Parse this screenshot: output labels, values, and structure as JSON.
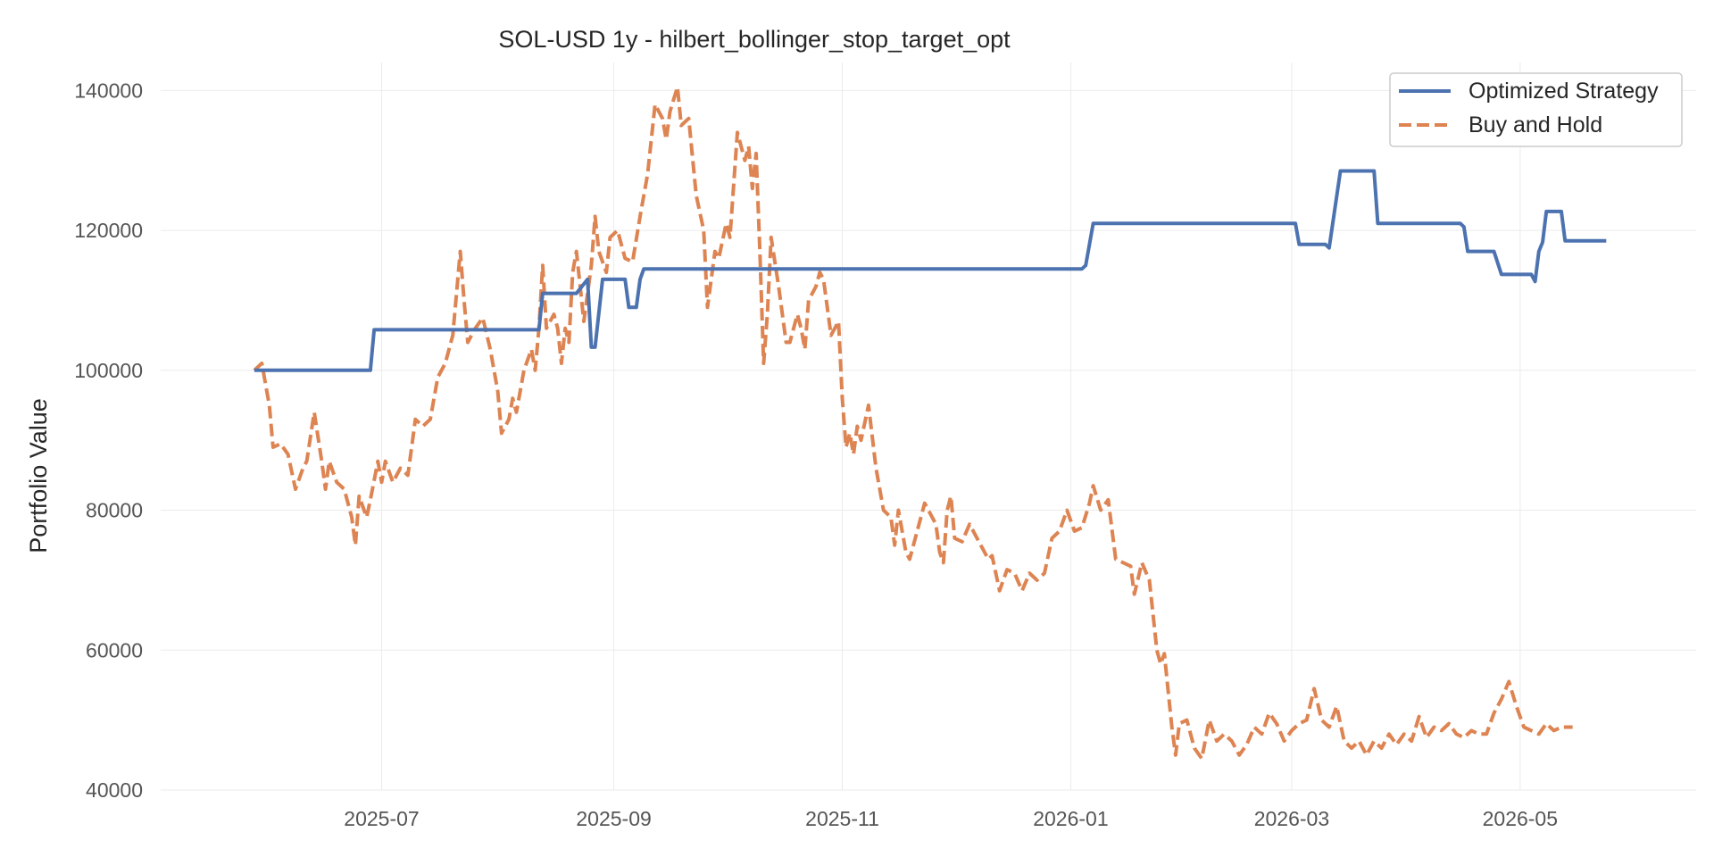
{
  "chart_data": {
    "type": "line",
    "title": "SOL-USD 1y - hilbert_bollinger_stop_target_opt",
    "xlabel": "",
    "ylabel": "Portfolio Value",
    "x_ticks": [
      "2025-07",
      "2025-09",
      "2025-11",
      "2026-01",
      "2026-03",
      "2026-05"
    ],
    "y_ticks": [
      40000,
      60000,
      80000,
      100000,
      120000,
      140000
    ],
    "xlim": [
      "2025-05-03",
      "2026-06-17"
    ],
    "ylim": [
      40000,
      144000
    ],
    "grid": true,
    "legend_position": "top-right",
    "series": [
      {
        "name": "Optimized Strategy",
        "color": "#4c72b0",
        "style": "solid",
        "points": [
          [
            "2025-05-28",
            100000
          ],
          [
            "2025-06-28",
            100000
          ],
          [
            "2025-06-29",
            105800
          ],
          [
            "2025-08-12",
            105800
          ],
          [
            "2025-08-13",
            111000
          ],
          [
            "2025-08-22",
            111000
          ],
          [
            "2025-08-25",
            113000
          ],
          [
            "2025-08-26",
            103300
          ],
          [
            "2025-08-27",
            103300
          ],
          [
            "2025-08-29",
            113000
          ],
          [
            "2025-09-04",
            113000
          ],
          [
            "2025-09-05",
            109000
          ],
          [
            "2025-09-07",
            109000
          ],
          [
            "2025-09-08",
            113000
          ],
          [
            "2025-09-09",
            114500
          ],
          [
            "2026-01-04",
            114500
          ],
          [
            "2026-01-05",
            115000
          ],
          [
            "2026-01-07",
            121000
          ],
          [
            "2026-03-02",
            121000
          ],
          [
            "2026-03-03",
            118000
          ],
          [
            "2026-03-10",
            118000
          ],
          [
            "2026-03-11",
            117500
          ],
          [
            "2026-03-14",
            128500
          ],
          [
            "2026-03-23",
            128500
          ],
          [
            "2026-03-24",
            121000
          ],
          [
            "2026-04-15",
            121000
          ],
          [
            "2026-04-16",
            120500
          ],
          [
            "2026-04-17",
            117000
          ],
          [
            "2026-04-24",
            117000
          ],
          [
            "2026-04-26",
            113700
          ],
          [
            "2026-05-04",
            113700
          ],
          [
            "2026-05-05",
            112700
          ],
          [
            "2026-05-06",
            117000
          ],
          [
            "2026-05-07",
            118300
          ],
          [
            "2026-05-08",
            122700
          ],
          [
            "2026-05-12",
            122700
          ],
          [
            "2026-05-13",
            118500
          ],
          [
            "2026-05-24",
            118500
          ]
        ]
      },
      {
        "name": "Buy and Hold",
        "color": "#dd8452",
        "style": "dashed",
        "points": [
          [
            "2025-05-28",
            100000
          ],
          [
            "2025-05-30",
            101000
          ],
          [
            "2025-06-01",
            95000
          ],
          [
            "2025-06-02",
            89000
          ],
          [
            "2025-06-04",
            89500
          ],
          [
            "2025-06-06",
            88000
          ],
          [
            "2025-06-08",
            83000
          ],
          [
            "2025-06-10",
            86000
          ],
          [
            "2025-06-11",
            87000
          ],
          [
            "2025-06-13",
            94000
          ],
          [
            "2025-06-15",
            87000
          ],
          [
            "2025-06-16",
            83000
          ],
          [
            "2025-06-17",
            87000
          ],
          [
            "2025-06-19",
            84000
          ],
          [
            "2025-06-21",
            83000
          ],
          [
            "2025-06-23",
            79000
          ],
          [
            "2025-06-24",
            75000
          ],
          [
            "2025-06-25",
            82000
          ],
          [
            "2025-06-27",
            79000
          ],
          [
            "2025-06-28",
            81500
          ],
          [
            "2025-06-30",
            87000
          ],
          [
            "2025-07-01",
            84000
          ],
          [
            "2025-07-02",
            87000
          ],
          [
            "2025-07-04",
            84000
          ],
          [
            "2025-07-06",
            86000
          ],
          [
            "2025-07-08",
            85000
          ],
          [
            "2025-07-10",
            93000
          ],
          [
            "2025-07-12",
            92000
          ],
          [
            "2025-07-14",
            93000
          ],
          [
            "2025-07-16",
            99000
          ],
          [
            "2025-07-18",
            101000
          ],
          [
            "2025-07-20",
            105000
          ],
          [
            "2025-07-22",
            117000
          ],
          [
            "2025-07-23",
            110000
          ],
          [
            "2025-07-24",
            104000
          ],
          [
            "2025-07-26",
            106000
          ],
          [
            "2025-07-28",
            107500
          ],
          [
            "2025-07-30",
            103000
          ],
          [
            "2025-08-01",
            97000
          ],
          [
            "2025-08-02",
            91000
          ],
          [
            "2025-08-04",
            93000
          ],
          [
            "2025-08-05",
            96000
          ],
          [
            "2025-08-06",
            94000
          ],
          [
            "2025-08-08",
            100000
          ],
          [
            "2025-08-10",
            103000
          ],
          [
            "2025-08-11",
            100000
          ],
          [
            "2025-08-12",
            106000
          ],
          [
            "2025-08-13",
            115000
          ],
          [
            "2025-08-14",
            106000
          ],
          [
            "2025-08-16",
            108000
          ],
          [
            "2025-08-17",
            106000
          ],
          [
            "2025-08-18",
            101000
          ],
          [
            "2025-08-19",
            106000
          ],
          [
            "2025-08-20",
            104000
          ],
          [
            "2025-08-21",
            114000
          ],
          [
            "2025-08-22",
            117000
          ],
          [
            "2025-08-23",
            112000
          ],
          [
            "2025-08-24",
            107000
          ],
          [
            "2025-08-25",
            111000
          ],
          [
            "2025-08-26",
            115000
          ],
          [
            "2025-08-27",
            122000
          ],
          [
            "2025-08-28",
            117000
          ],
          [
            "2025-08-30",
            114000
          ],
          [
            "2025-08-31",
            119000
          ],
          [
            "2025-09-02",
            120000
          ],
          [
            "2025-09-04",
            116000
          ],
          [
            "2025-09-06",
            115500
          ],
          [
            "2025-09-08",
            122000
          ],
          [
            "2025-09-10",
            128000
          ],
          [
            "2025-09-12",
            138000
          ],
          [
            "2025-09-14",
            136000
          ],
          [
            "2025-09-15",
            133000
          ],
          [
            "2025-09-16",
            137000
          ],
          [
            "2025-09-18",
            140500
          ],
          [
            "2025-09-19",
            135000
          ],
          [
            "2025-09-21",
            136000
          ],
          [
            "2025-09-23",
            125000
          ],
          [
            "2025-09-25",
            120000
          ],
          [
            "2025-09-26",
            109000
          ],
          [
            "2025-09-28",
            117000
          ],
          [
            "2025-09-29",
            116000
          ],
          [
            "2025-10-01",
            121000
          ],
          [
            "2025-10-02",
            119000
          ],
          [
            "2025-10-04",
            134000
          ],
          [
            "2025-10-06",
            130000
          ],
          [
            "2025-10-07",
            132000
          ],
          [
            "2025-10-08",
            126000
          ],
          [
            "2025-10-09",
            131000
          ],
          [
            "2025-10-10",
            117000
          ],
          [
            "2025-10-11",
            101000
          ],
          [
            "2025-10-12",
            108000
          ],
          [
            "2025-10-13",
            119000
          ],
          [
            "2025-10-15",
            112000
          ],
          [
            "2025-10-17",
            104000
          ],
          [
            "2025-10-18",
            104000
          ],
          [
            "2025-10-19",
            106000
          ],
          [
            "2025-10-20",
            108000
          ],
          [
            "2025-10-21",
            106000
          ],
          [
            "2025-10-22",
            103000
          ],
          [
            "2025-10-23",
            110000
          ],
          [
            "2025-10-25",
            112000
          ],
          [
            "2025-10-26",
            114000
          ],
          [
            "2025-10-27",
            113000
          ],
          [
            "2025-10-29",
            105000
          ],
          [
            "2025-10-30",
            106000
          ],
          [
            "2025-10-31",
            107000
          ],
          [
            "2025-11-01",
            96000
          ],
          [
            "2025-11-02",
            89000
          ],
          [
            "2025-11-03",
            91000
          ],
          [
            "2025-11-04",
            88000
          ],
          [
            "2025-11-05",
            92000
          ],
          [
            "2025-11-06",
            90000
          ],
          [
            "2025-11-07",
            92500
          ],
          [
            "2025-11-08",
            95000
          ],
          [
            "2025-11-10",
            86000
          ],
          [
            "2025-11-12",
            80000
          ],
          [
            "2025-11-14",
            79000
          ],
          [
            "2025-11-15",
            75000
          ],
          [
            "2025-11-16",
            80000
          ],
          [
            "2025-11-18",
            74000
          ],
          [
            "2025-11-19",
            73000
          ],
          [
            "2025-11-21",
            77000
          ],
          [
            "2025-11-22",
            79000
          ],
          [
            "2025-11-23",
            81000
          ],
          [
            "2025-11-25",
            79000
          ],
          [
            "2025-11-26",
            78000
          ],
          [
            "2025-11-27",
            74000
          ],
          [
            "2025-11-28",
            72500
          ],
          [
            "2025-11-29",
            80000
          ],
          [
            "2025-11-30",
            82000
          ],
          [
            "2025-12-01",
            76000
          ],
          [
            "2025-12-03",
            75500
          ],
          [
            "2025-12-05",
            78000
          ],
          [
            "2025-12-07",
            76000
          ],
          [
            "2025-12-09",
            74000
          ],
          [
            "2025-12-10",
            73000
          ],
          [
            "2025-12-11",
            73500
          ],
          [
            "2025-12-13",
            68500
          ],
          [
            "2025-12-15",
            71500
          ],
          [
            "2025-12-17",
            71000
          ],
          [
            "2025-12-19",
            68500
          ],
          [
            "2025-12-21",
            71000
          ],
          [
            "2025-12-23",
            70000
          ],
          [
            "2025-12-25",
            71000
          ],
          [
            "2025-12-27",
            76000
          ],
          [
            "2025-12-29",
            77000
          ],
          [
            "2025-12-31",
            80000
          ],
          [
            "2026-01-02",
            77000
          ],
          [
            "2026-01-04",
            77500
          ],
          [
            "2026-01-06",
            81000
          ],
          [
            "2026-01-07",
            83500
          ],
          [
            "2026-01-09",
            80000
          ],
          [
            "2026-01-11",
            81500
          ],
          [
            "2026-01-13",
            73000
          ],
          [
            "2026-01-15",
            72500
          ],
          [
            "2026-01-17",
            72000
          ],
          [
            "2026-01-18",
            68000
          ],
          [
            "2026-01-20",
            72500
          ],
          [
            "2026-01-22",
            70000
          ],
          [
            "2026-01-24",
            60000
          ],
          [
            "2026-01-25",
            58000
          ],
          [
            "2026-01-26",
            59500
          ],
          [
            "2026-01-28",
            49000
          ],
          [
            "2026-01-29",
            45000
          ],
          [
            "2026-01-30",
            49500
          ],
          [
            "2026-02-01",
            50000
          ],
          [
            "2026-02-03",
            46000
          ],
          [
            "2026-02-05",
            44500
          ],
          [
            "2026-02-07",
            50000
          ],
          [
            "2026-02-09",
            47000
          ],
          [
            "2026-02-11",
            48000
          ],
          [
            "2026-02-13",
            47000
          ],
          [
            "2026-02-15",
            45000
          ],
          [
            "2026-02-17",
            46500
          ],
          [
            "2026-02-19",
            49000
          ],
          [
            "2026-02-21",
            48000
          ],
          [
            "2026-02-23",
            51000
          ],
          [
            "2026-02-25",
            49500
          ],
          [
            "2026-02-27",
            47000
          ],
          [
            "2026-03-01",
            48500
          ],
          [
            "2026-03-03",
            49500
          ],
          [
            "2026-03-05",
            50000
          ],
          [
            "2026-03-07",
            54500
          ],
          [
            "2026-03-09",
            50000
          ],
          [
            "2026-03-11",
            49000
          ],
          [
            "2026-03-13",
            52000
          ],
          [
            "2026-03-15",
            47000
          ],
          [
            "2026-03-17",
            46000
          ],
          [
            "2026-03-19",
            47000
          ],
          [
            "2026-03-21",
            45000
          ],
          [
            "2026-03-23",
            47000
          ],
          [
            "2026-03-25",
            46000
          ],
          [
            "2026-03-27",
            48000
          ],
          [
            "2026-03-29",
            46500
          ],
          [
            "2026-03-31",
            48000
          ],
          [
            "2026-04-02",
            47000
          ],
          [
            "2026-04-04",
            50500
          ],
          [
            "2026-04-06",
            47500
          ],
          [
            "2026-04-08",
            49000
          ],
          [
            "2026-04-10",
            48500
          ],
          [
            "2026-04-12",
            49500
          ],
          [
            "2026-04-14",
            48000
          ],
          [
            "2026-04-16",
            47500
          ],
          [
            "2026-04-18",
            48500
          ],
          [
            "2026-04-20",
            48000
          ],
          [
            "2026-04-22",
            48000
          ],
          [
            "2026-04-24",
            51000
          ],
          [
            "2026-04-26",
            53000
          ],
          [
            "2026-04-28",
            55500
          ],
          [
            "2026-04-30",
            52000
          ],
          [
            "2026-05-02",
            49000
          ],
          [
            "2026-05-04",
            48500
          ],
          [
            "2026-05-06",
            48000
          ],
          [
            "2026-05-08",
            49500
          ],
          [
            "2026-05-10",
            48500
          ],
          [
            "2026-05-12",
            49000
          ],
          [
            "2026-05-15",
            49000
          ]
        ]
      }
    ]
  }
}
